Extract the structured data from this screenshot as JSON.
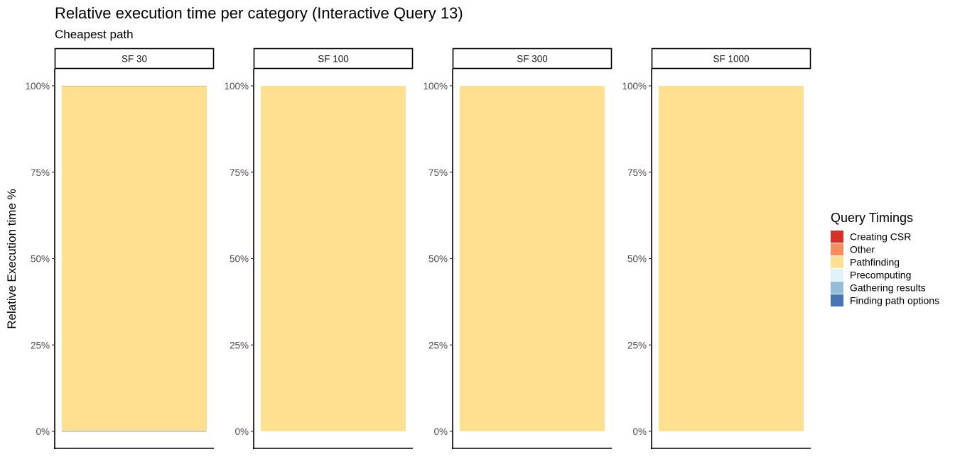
{
  "chart_data": {
    "type": "bar",
    "stacked": true,
    "normalized": true,
    "title": "Relative execution time per category (Interactive Query 13)",
    "subtitle": "Cheapest path",
    "ylabel": "Relative Execution time %",
    "xlabel": "",
    "ylim": [
      0,
      100
    ],
    "y_ticks": [
      0,
      25,
      50,
      75,
      100
    ],
    "y_tick_labels": [
      "0%",
      "25%",
      "50%",
      "75%",
      "100%"
    ],
    "grid": false,
    "legend_position": "right",
    "legend_title": "Query Timings",
    "categories": [
      {
        "name": "Creating CSR",
        "color": "#d73027"
      },
      {
        "name": "Other",
        "color": "#fc8d59"
      },
      {
        "name": "Pathfinding",
        "color": "#fee090"
      },
      {
        "name": "Precomputing",
        "color": "#e0f3f8"
      },
      {
        "name": "Gathering results",
        "color": "#91bfdb"
      },
      {
        "name": "Finding path options",
        "color": "#4575b4"
      }
    ],
    "facets": [
      {
        "label": "SF 30",
        "values": {
          "Creating CSR": 0,
          "Other": 0.05,
          "Pathfinding": 99.85,
          "Precomputing": 0,
          "Gathering results": 0.05,
          "Finding path options": 0.05
        }
      },
      {
        "label": "SF 100",
        "values": {
          "Creating CSR": 0,
          "Other": 0,
          "Pathfinding": 100,
          "Precomputing": 0,
          "Gathering results": 0,
          "Finding path options": 0
        }
      },
      {
        "label": "SF 300",
        "values": {
          "Creating CSR": 0,
          "Other": 0,
          "Pathfinding": 100,
          "Precomputing": 0,
          "Gathering results": 0,
          "Finding path options": 0
        }
      },
      {
        "label": "SF 1000",
        "values": {
          "Creating CSR": 0,
          "Other": 0,
          "Pathfinding": 100,
          "Precomputing": 0,
          "Gathering results": 0,
          "Finding path options": 0
        }
      }
    ]
  }
}
